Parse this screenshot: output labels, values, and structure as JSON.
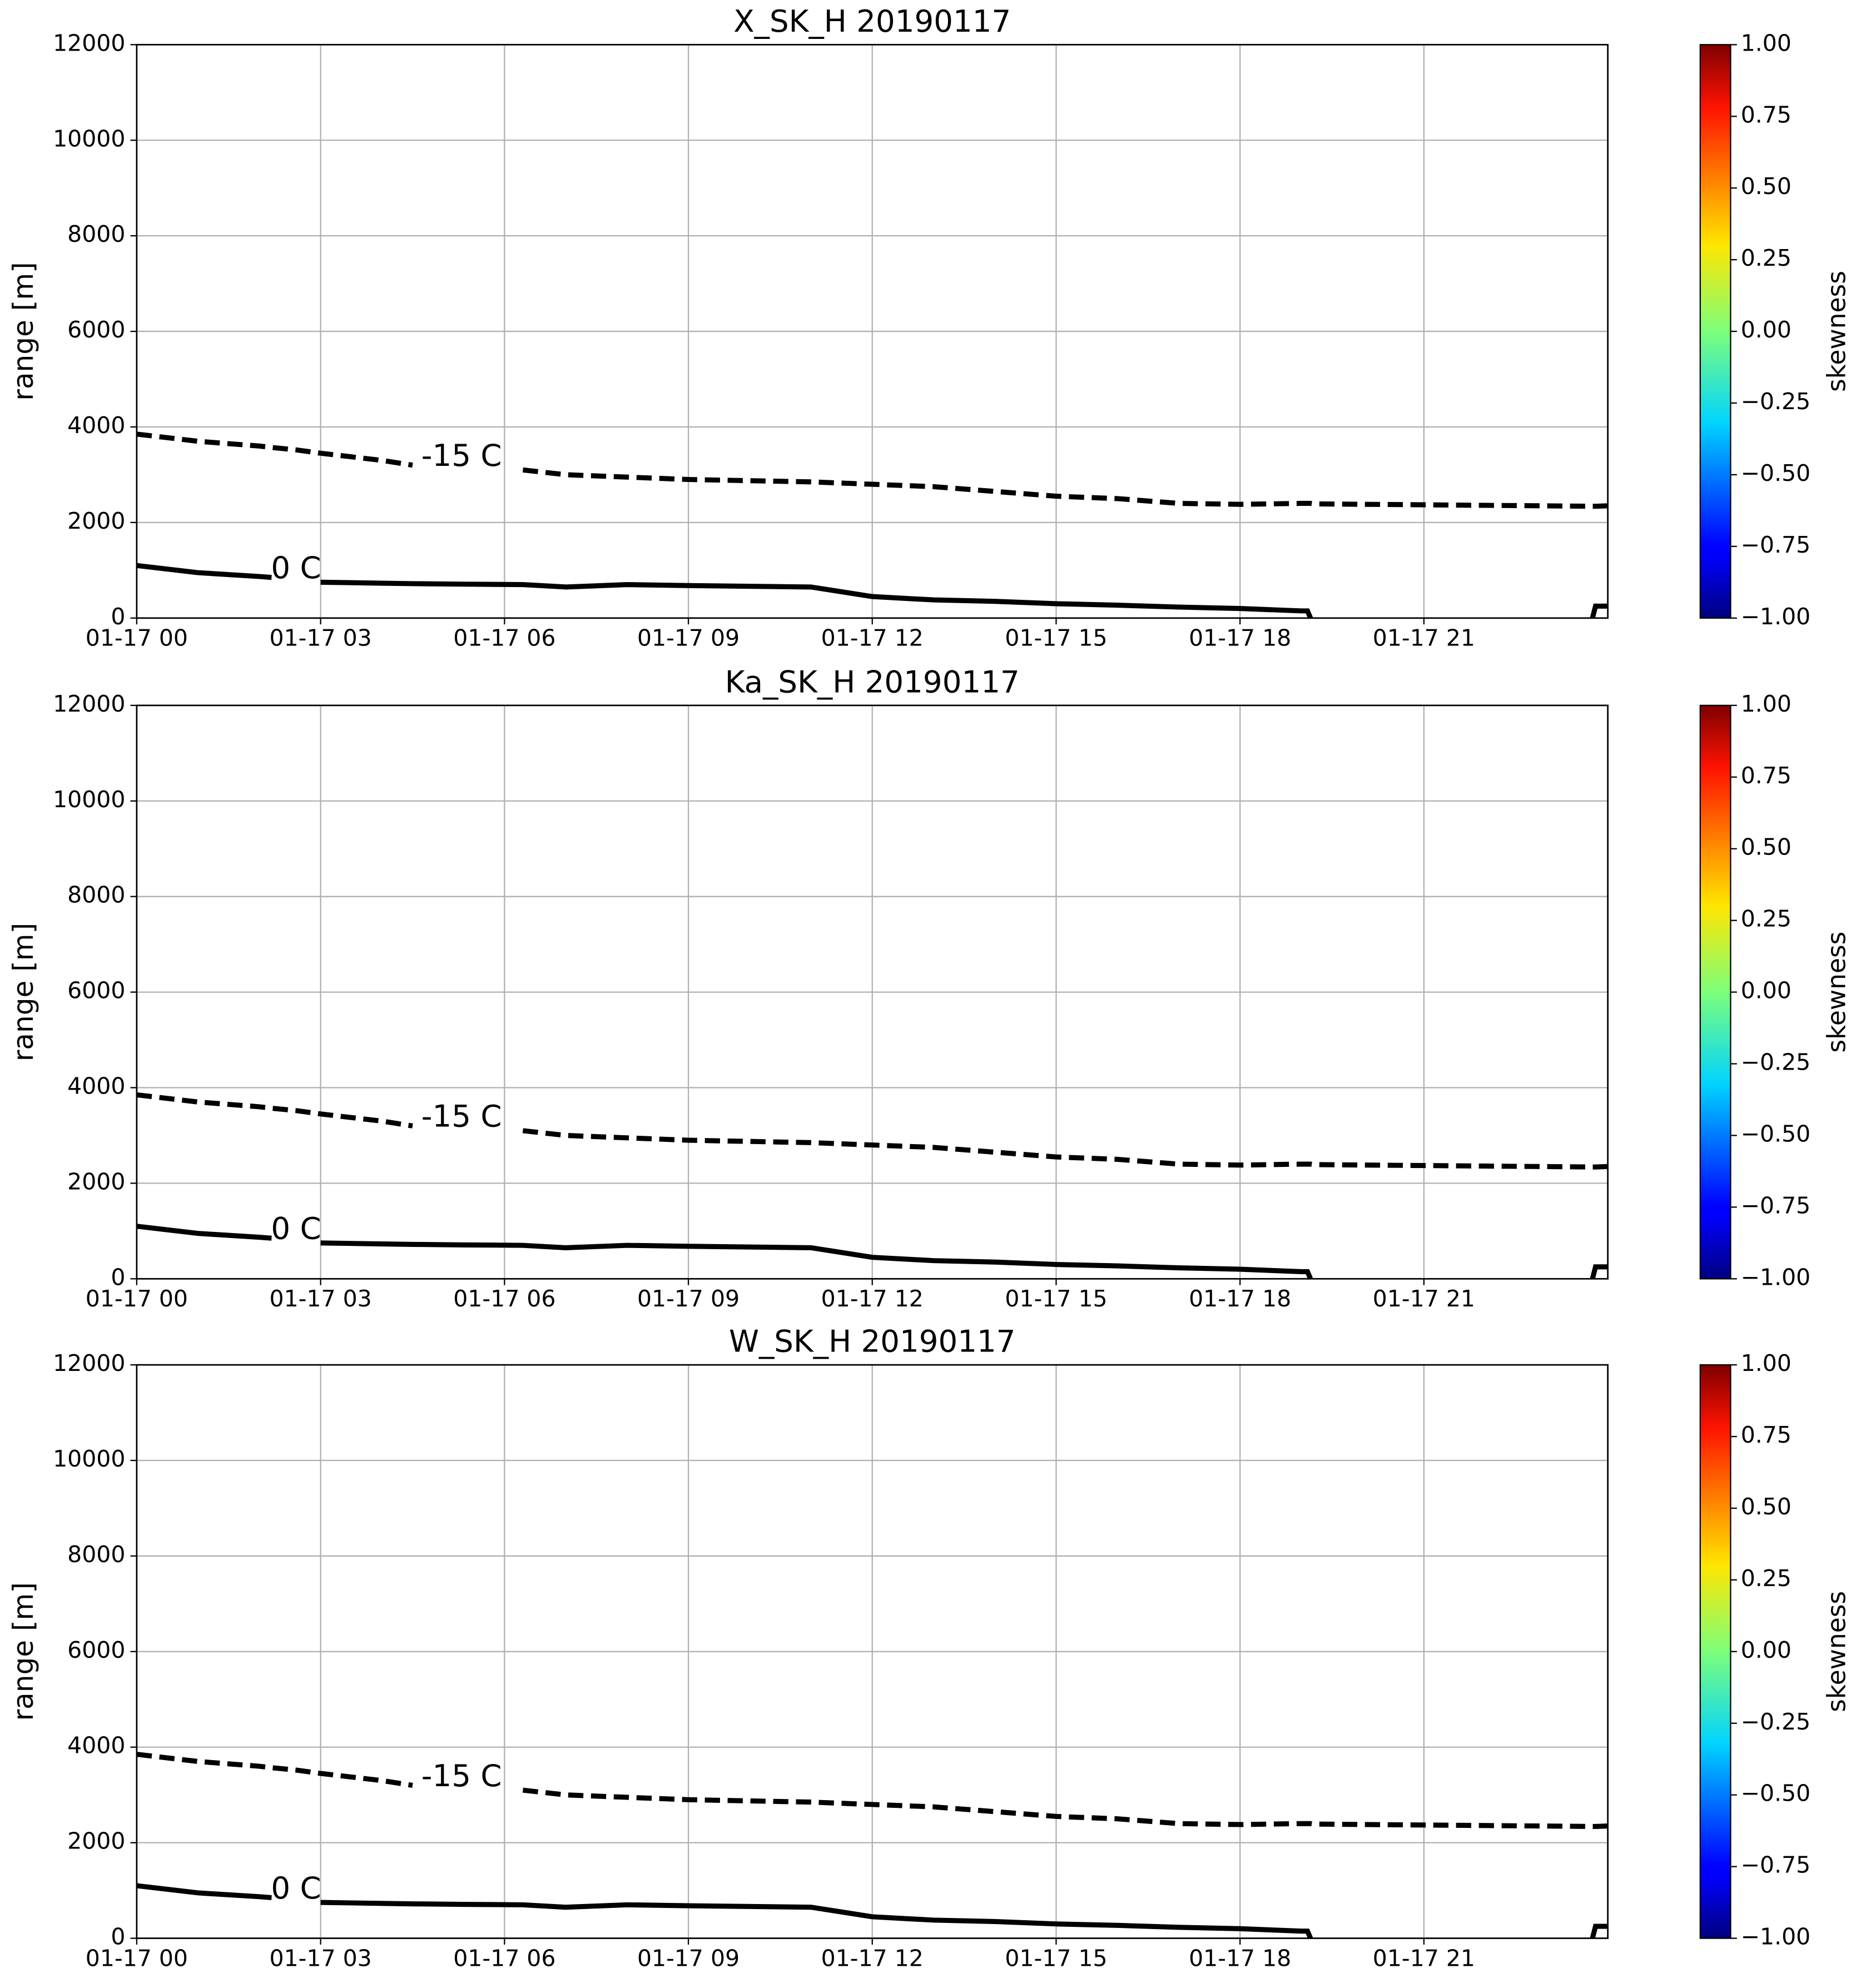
{
  "chart_data": [
    {
      "type": "line",
      "title": "X_SK_H 20190117",
      "y_label": "range [m]",
      "colorbar_label": "skewness",
      "colormap": "jet",
      "grid": true,
      "xlim": [
        0,
        24
      ],
      "xticks": [
        {
          "value": 0,
          "label": "01-17 00"
        },
        {
          "value": 3,
          "label": "01-17 03"
        },
        {
          "value": 6,
          "label": "01-17 06"
        },
        {
          "value": 9,
          "label": "01-17 09"
        },
        {
          "value": 12,
          "label": "01-17 12"
        },
        {
          "value": 15,
          "label": "01-17 15"
        },
        {
          "value": 18,
          "label": "01-17 18"
        },
        {
          "value": 21,
          "label": "01-17 21"
        }
      ],
      "ylim": [
        0,
        12000
      ],
      "yticks": [
        0,
        2000,
        4000,
        6000,
        8000,
        10000,
        12000
      ],
      "colorbar_lim": [
        -1,
        1
      ],
      "colorbar_ticks": [
        {
          "value": 1,
          "label": "1.00"
        },
        {
          "value": 0.75,
          "label": "0.75"
        },
        {
          "value": 0.5,
          "label": "0.50"
        },
        {
          "value": 0.25,
          "label": "0.25"
        },
        {
          "value": 0,
          "label": "0.00"
        },
        {
          "value": -0.25,
          "label": "−0.25"
        },
        {
          "value": -0.5,
          "label": "−0.50"
        },
        {
          "value": -0.75,
          "label": "−0.75"
        },
        {
          "value": -1,
          "label": "−1.00"
        }
      ],
      "x": [
        0,
        1,
        2,
        2.2,
        2.6,
        3,
        4,
        4.5,
        5.3,
        6.3,
        7,
        8,
        9,
        11,
        12,
        13,
        14,
        15,
        16,
        17,
        18,
        19,
        19.1,
        19.15,
        19.2,
        23.75,
        23.8,
        24
      ],
      "series": [
        {
          "name": "-15 C",
          "color": "#000000",
          "dashed": true,
          "values": [
            3850,
            3700,
            3600,
            3570,
            3520,
            3450,
            3300,
            3200,
            null,
            3100,
            3000,
            2950,
            2900,
            2850,
            2800,
            2750,
            2650,
            2550,
            2500,
            2400,
            2380,
            2400,
            2400,
            2400,
            2390,
            2340,
            2340,
            2350
          ]
        },
        {
          "name": "0 C",
          "color": "#000000",
          "dashed": false,
          "values": [
            1100,
            950,
            870,
            850,
            null,
            750,
            730,
            720,
            710,
            700,
            650,
            700,
            680,
            650,
            450,
            380,
            350,
            300,
            270,
            230,
            200,
            150,
            150,
            0,
            null,
            0,
            250,
            250
          ]
        }
      ]
    },
    {
      "type": "line",
      "title": "Ka_SK_H 20190117",
      "y_label": "range [m]",
      "colorbar_label": "skewness",
      "colormap": "jet",
      "grid": true,
      "xlim": [
        0,
        24
      ],
      "xticks": [
        {
          "value": 0,
          "label": "01-17 00"
        },
        {
          "value": 3,
          "label": "01-17 03"
        },
        {
          "value": 6,
          "label": "01-17 06"
        },
        {
          "value": 9,
          "label": "01-17 09"
        },
        {
          "value": 12,
          "label": "01-17 12"
        },
        {
          "value": 15,
          "label": "01-17 15"
        },
        {
          "value": 18,
          "label": "01-17 18"
        },
        {
          "value": 21,
          "label": "01-17 21"
        }
      ],
      "ylim": [
        0,
        12000
      ],
      "yticks": [
        0,
        2000,
        4000,
        6000,
        8000,
        10000,
        12000
      ],
      "colorbar_lim": [
        -1,
        1
      ],
      "colorbar_ticks": [
        {
          "value": 1,
          "label": "1.00"
        },
        {
          "value": 0.75,
          "label": "0.75"
        },
        {
          "value": 0.5,
          "label": "0.50"
        },
        {
          "value": 0.25,
          "label": "0.25"
        },
        {
          "value": 0,
          "label": "0.00"
        },
        {
          "value": -0.25,
          "label": "−0.25"
        },
        {
          "value": -0.5,
          "label": "−0.50"
        },
        {
          "value": -0.75,
          "label": "−0.75"
        },
        {
          "value": -1,
          "label": "−1.00"
        }
      ],
      "x": [
        0,
        1,
        2,
        2.2,
        2.6,
        3,
        4,
        4.5,
        5.3,
        6.3,
        7,
        8,
        9,
        11,
        12,
        13,
        14,
        15,
        16,
        17,
        18,
        19,
        19.1,
        19.15,
        19.2,
        23.75,
        23.8,
        24
      ],
      "series": [
        {
          "name": "-15 C",
          "color": "#000000",
          "dashed": true,
          "values": [
            3850,
            3700,
            3600,
            3570,
            3520,
            3450,
            3300,
            3200,
            null,
            3100,
            3000,
            2950,
            2900,
            2850,
            2800,
            2750,
            2650,
            2550,
            2500,
            2400,
            2380,
            2400,
            2400,
            2400,
            2390,
            2340,
            2340,
            2350
          ]
        },
        {
          "name": "0 C",
          "color": "#000000",
          "dashed": false,
          "values": [
            1100,
            950,
            870,
            850,
            null,
            750,
            730,
            720,
            710,
            700,
            650,
            700,
            680,
            650,
            450,
            380,
            350,
            300,
            270,
            230,
            200,
            150,
            150,
            0,
            null,
            0,
            250,
            250
          ]
        }
      ]
    },
    {
      "type": "line",
      "title": "W_SK_H 20190117",
      "y_label": "range [m]",
      "colorbar_label": "skewness",
      "colormap": "jet",
      "grid": true,
      "xlim": [
        0,
        24
      ],
      "xticks": [
        {
          "value": 0,
          "label": "01-17 00"
        },
        {
          "value": 3,
          "label": "01-17 03"
        },
        {
          "value": 6,
          "label": "01-17 06"
        },
        {
          "value": 9,
          "label": "01-17 09"
        },
        {
          "value": 12,
          "label": "01-17 12"
        },
        {
          "value": 15,
          "label": "01-17 15"
        },
        {
          "value": 18,
          "label": "01-17 18"
        },
        {
          "value": 21,
          "label": "01-17 21"
        }
      ],
      "ylim": [
        0,
        12000
      ],
      "yticks": [
        0,
        2000,
        4000,
        6000,
        8000,
        10000,
        12000
      ],
      "colorbar_lim": [
        -1,
        1
      ],
      "colorbar_ticks": [
        {
          "value": 1,
          "label": "1.00"
        },
        {
          "value": 0.75,
          "label": "0.75"
        },
        {
          "value": 0.5,
          "label": "0.50"
        },
        {
          "value": 0.25,
          "label": "0.25"
        },
        {
          "value": 0,
          "label": "0.00"
        },
        {
          "value": -0.25,
          "label": "−0.25"
        },
        {
          "value": -0.5,
          "label": "−0.50"
        },
        {
          "value": -0.75,
          "label": "−0.75"
        },
        {
          "value": -1,
          "label": "−1.00"
        }
      ],
      "x": [
        0,
        1,
        2,
        2.2,
        2.6,
        3,
        4,
        4.5,
        5.3,
        6.3,
        7,
        8,
        9,
        11,
        12,
        13,
        14,
        15,
        16,
        17,
        18,
        19,
        19.1,
        19.15,
        19.2,
        23.75,
        23.8,
        24
      ],
      "series": [
        {
          "name": "-15 C",
          "color": "#000000",
          "dashed": true,
          "values": [
            3850,
            3700,
            3600,
            3570,
            3520,
            3450,
            3300,
            3200,
            null,
            3100,
            3000,
            2950,
            2900,
            2850,
            2800,
            2750,
            2650,
            2550,
            2500,
            2400,
            2380,
            2400,
            2400,
            2400,
            2390,
            2340,
            2340,
            2350
          ]
        },
        {
          "name": "0 C",
          "color": "#000000",
          "dashed": false,
          "values": [
            1100,
            950,
            870,
            850,
            null,
            750,
            730,
            720,
            710,
            700,
            650,
            700,
            680,
            650,
            450,
            380,
            350,
            300,
            270,
            230,
            200,
            150,
            150,
            0,
            null,
            0,
            250,
            250
          ]
        }
      ]
    }
  ]
}
